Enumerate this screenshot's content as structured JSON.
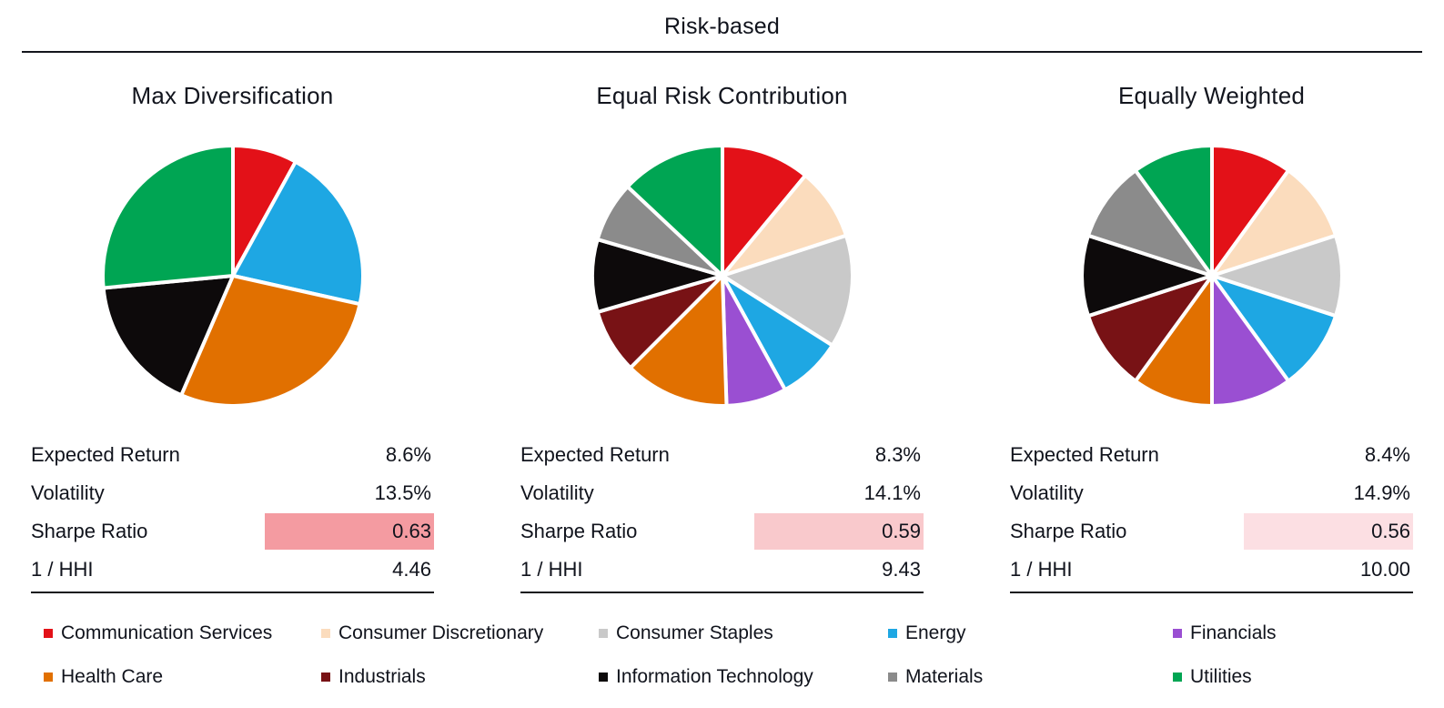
{
  "title": "Risk-based",
  "sectors": [
    {
      "name": "Communication Services",
      "color": "#e31118"
    },
    {
      "name": "Consumer Discretionary",
      "color": "#fbdcbd"
    },
    {
      "name": "Consumer Staples",
      "color": "#c9c9c9"
    },
    {
      "name": "Energy",
      "color": "#1ea7e3"
    },
    {
      "name": "Financials",
      "color": "#9a4fd2"
    },
    {
      "name": "Health Care",
      "color": "#e17000"
    },
    {
      "name": "Industrials",
      "color": "#781215"
    },
    {
      "name": "Information Technology",
      "color": "#0d0a0b"
    },
    {
      "name": "Materials",
      "color": "#8b8b8b"
    },
    {
      "name": "Utilities",
      "color": "#00a553"
    }
  ],
  "chart_data": [
    {
      "type": "pie",
      "title": "Max Diversification",
      "labels": [
        "Communication Services",
        "Consumer Discretionary",
        "Consumer Staples",
        "Energy",
        "Financials",
        "Health Care",
        "Industrials",
        "Information Technology",
        "Materials",
        "Utilities"
      ],
      "values": [
        8,
        0,
        0,
        20.5,
        0,
        28,
        0,
        17,
        0,
        26.5
      ],
      "start_angle_deg": 0,
      "direction": "clockwise",
      "stats": {
        "labels": [
          "Expected Return",
          "Volatility",
          "Sharpe Ratio",
          "1 / HHI"
        ],
        "values": [
          "8.6%",
          "13.5%",
          "0.63",
          "4.46"
        ],
        "sharpe_highlight": "#f49ba1"
      }
    },
    {
      "type": "pie",
      "title": "Equal Risk Contribution",
      "labels": [
        "Communication Services",
        "Consumer Discretionary",
        "Consumer Staples",
        "Energy",
        "Financials",
        "Health Care",
        "Industrials",
        "Information Technology",
        "Materials",
        "Utilities"
      ],
      "values": [
        11,
        9,
        14,
        8,
        7.5,
        13,
        8,
        9,
        7.5,
        13
      ],
      "start_angle_deg": 0,
      "direction": "clockwise",
      "stats": {
        "labels": [
          "Expected Return",
          "Volatility",
          "Sharpe Ratio",
          "1 / HHI"
        ],
        "values": [
          "8.3%",
          "14.1%",
          "0.59",
          "9.43"
        ],
        "sharpe_highlight": "#f9c9cc"
      }
    },
    {
      "type": "pie",
      "title": "Equally Weighted",
      "labels": [
        "Communication Services",
        "Consumer Discretionary",
        "Consumer Staples",
        "Energy",
        "Financials",
        "Health Care",
        "Industrials",
        "Information Technology",
        "Materials",
        "Utilities"
      ],
      "values": [
        10,
        10,
        10,
        10,
        10,
        10,
        10,
        10,
        10,
        10
      ],
      "start_angle_deg": 0,
      "direction": "clockwise",
      "stats": {
        "labels": [
          "Expected Return",
          "Volatility",
          "Sharpe Ratio",
          "1 / HHI"
        ],
        "values": [
          "8.4%",
          "14.9%",
          "0.56",
          "10.00"
        ],
        "sharpe_highlight": "#fcdfe3"
      }
    }
  ]
}
